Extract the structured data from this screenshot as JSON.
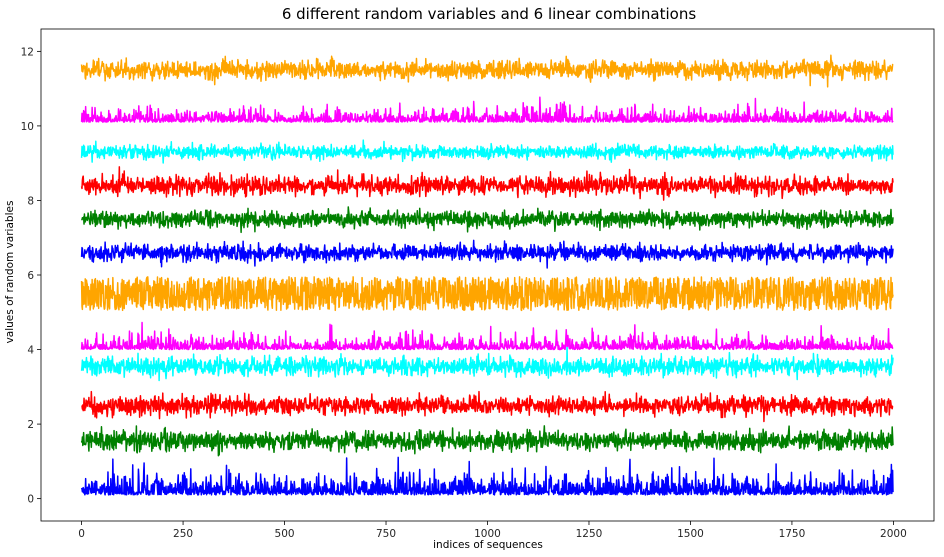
{
  "chart_data": {
    "type": "line",
    "title": "6 different random variables and 6 linear combinations",
    "xlabel": "indices of sequences",
    "ylabel": "values of random variables",
    "xlim": [
      -100,
      2100
    ],
    "ylim": [
      -0.6,
      12.6
    ],
    "xticks": [
      0,
      250,
      500,
      750,
      1000,
      1250,
      1500,
      1750,
      2000
    ],
    "xtick_labels": [
      "0",
      "250",
      "500",
      "750",
      "1000",
      "1250",
      "1500",
      "1750",
      "2000"
    ],
    "yticks": [
      0,
      2,
      4,
      6,
      8,
      10,
      12
    ],
    "ytick_labels": [
      "0",
      "2",
      "4",
      "6",
      "8",
      "10",
      "12"
    ],
    "grid": false,
    "n_points": 2000,
    "series": [
      {
        "color": "#0000ff",
        "level": 0.35,
        "band": [
          0.1,
          0.8
        ],
        "style": "skewed-up"
      },
      {
        "color": "#008000",
        "level": 1.55,
        "band": [
          1.2,
          1.9
        ],
        "style": "noise"
      },
      {
        "color": "#ff0000",
        "level": 2.5,
        "band": [
          2.2,
          2.9
        ],
        "style": "noise"
      },
      {
        "color": "#00ffff",
        "level": 3.55,
        "band": [
          3.2,
          3.9
        ],
        "style": "noise"
      },
      {
        "color": "#ff00ff",
        "level": 4.15,
        "band": [
          4.0,
          4.6
        ],
        "style": "spiky-up"
      },
      {
        "color": "#ffa500",
        "level": 5.5,
        "band": [
          5.05,
          5.95
        ],
        "style": "uniform"
      },
      {
        "color": "#0000ff",
        "level": 6.6,
        "band": [
          6.3,
          6.9
        ],
        "style": "noise"
      },
      {
        "color": "#008000",
        "level": 7.5,
        "band": [
          7.2,
          7.8
        ],
        "style": "noise"
      },
      {
        "color": "#ff0000",
        "level": 8.4,
        "band": [
          8.1,
          8.8
        ],
        "style": "noise"
      },
      {
        "color": "#00ffff",
        "level": 9.3,
        "band": [
          9.1,
          9.6
        ],
        "style": "noise"
      },
      {
        "color": "#ff00ff",
        "level": 10.25,
        "band": [
          10.1,
          10.7
        ],
        "style": "spiky-up"
      },
      {
        "color": "#ffa500",
        "level": 11.5,
        "band": [
          11.2,
          11.9
        ],
        "style": "noise"
      }
    ]
  }
}
